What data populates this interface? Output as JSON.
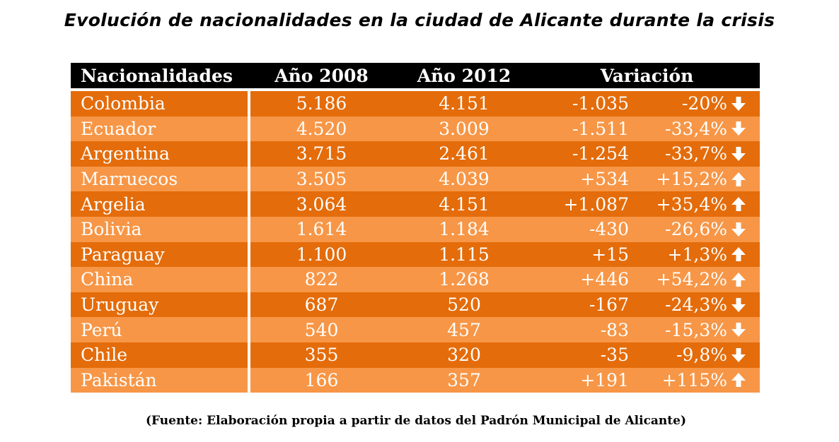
{
  "title": "Evolución de nacionalidades en la ciudad de Alicante durante  la crisis",
  "source": "(Fuente: Elaboración propia a partir de datos del Padrón Municipal de Alicante)",
  "header": {
    "nationality": "Nacionalidades",
    "year1": "Año 2008",
    "year2": "Año 2012",
    "variation": "Variación"
  },
  "colors": {
    "header_bg": "#000000",
    "row_dark": "#E46C0A",
    "row_light": "#F79646",
    "text": "#FFFFFF"
  },
  "rows": [
    {
      "name": "Colombia",
      "y2008": "5.186",
      "y2012": "4.151",
      "diff": "-1.035",
      "pct": "-20%",
      "arrow": "down-arrow-icon"
    },
    {
      "name": "Ecuador",
      "y2008": "4.520",
      "y2012": "3.009",
      "diff": "-1.511",
      "pct": "-33,4%",
      "arrow": "down-arrow-icon"
    },
    {
      "name": "Argentina",
      "y2008": "3.715",
      "y2012": "2.461",
      "diff": "-1.254",
      "pct": "-33,7%",
      "arrow": "down-arrow-icon"
    },
    {
      "name": "Marruecos",
      "y2008": "3.505",
      "y2012": "4.039",
      "diff": "+534",
      "pct": "+15,2%",
      "arrow": "up-arrow-icon"
    },
    {
      "name": "Argelia",
      "y2008": "3.064",
      "y2012": "4.151",
      "diff": "+1.087",
      "pct": "+35,4%",
      "arrow": "up-arrow-icon"
    },
    {
      "name": "Bolivia",
      "y2008": "1.614",
      "y2012": "1.184",
      "diff": "-430",
      "pct": "-26,6%",
      "arrow": "down-arrow-icon"
    },
    {
      "name": "Paraguay",
      "y2008": "1.100",
      "y2012": "1.115",
      "diff": "+15",
      "pct": "+1,3%",
      "arrow": "up-arrow-icon"
    },
    {
      "name": "China",
      "y2008": "822",
      "y2012": "1.268",
      "diff": "+446",
      "pct": "+54,2%",
      "arrow": "up-arrow-icon"
    },
    {
      "name": "Uruguay",
      "y2008": "687",
      "y2012": "520",
      "diff": "-167",
      "pct": "-24,3%",
      "arrow": "down-arrow-icon"
    },
    {
      "name": "Perú",
      "y2008": "540",
      "y2012": "457",
      "diff": "-83",
      "pct": "-15,3%",
      "arrow": "down-arrow-icon"
    },
    {
      "name": "Chile",
      "y2008": "355",
      "y2012": "320",
      "diff": "-35",
      "pct": "-9,8%",
      "arrow": "down-arrow-icon"
    },
    {
      "name": "Pakistán",
      "y2008": "166",
      "y2012": "357",
      "diff": "+191",
      "pct": "+115%",
      "arrow": "up-arrow-icon"
    }
  ],
  "chart_data": {
    "type": "table",
    "title": "Evolución de nacionalidades en la ciudad de Alicante durante  la crisis",
    "columns": [
      "Nacionalidades",
      "Año 2008",
      "Año 2012",
      "Variación"
    ],
    "categories": [
      "Colombia",
      "Ecuador",
      "Argentina",
      "Marruecos",
      "Argelia",
      "Bolivia",
      "Paraguay",
      "China",
      "Uruguay",
      "Perú",
      "Chile",
      "Pakistán"
    ],
    "series": [
      {
        "name": "Año 2008",
        "values": [
          5186,
          4520,
          3715,
          3505,
          3064,
          1614,
          1100,
          822,
          687,
          540,
          355,
          166
        ]
      },
      {
        "name": "Año 2012",
        "values": [
          4151,
          3009,
          2461,
          4039,
          4151,
          1184,
          1115,
          1268,
          520,
          457,
          320,
          357
        ]
      },
      {
        "name": "Variación",
        "values": [
          -1035,
          -1511,
          -1254,
          534,
          1087,
          -430,
          15,
          446,
          -167,
          -83,
          -35,
          191
        ]
      },
      {
        "name": "Variación",
        "values": [
          -20,
          -33.4,
          -33.7,
          15.2,
          35.4,
          -26.6,
          1.3,
          54.2,
          -24.3,
          -15.3,
          -9.8,
          115
        ]
      }
    ]
  }
}
